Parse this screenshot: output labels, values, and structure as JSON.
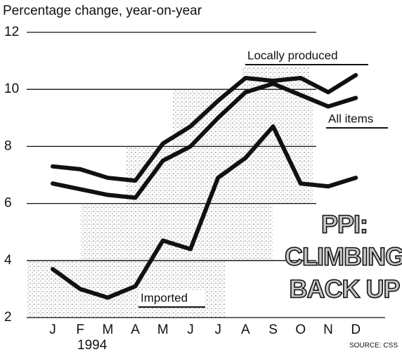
{
  "chart_data": {
    "type": "line",
    "title": "Percentage change, year-on-year",
    "categories": [
      "J",
      "F",
      "M",
      "A",
      "M",
      "J",
      "J",
      "A",
      "S",
      "O",
      "N",
      "D"
    ],
    "year_label": "1994",
    "series": [
      {
        "name": "Locally produced",
        "color": "#111111",
        "values": [
          7.3,
          7.2,
          6.9,
          6.8,
          8.1,
          8.7,
          9.6,
          10.4,
          10.3,
          10.4,
          9.9,
          10.5
        ]
      },
      {
        "name": "All items",
        "color": "#111111",
        "values": [
          6.7,
          6.5,
          6.3,
          6.2,
          7.5,
          8.0,
          9.0,
          9.9,
          10.2,
          9.8,
          9.4,
          9.7
        ]
      },
      {
        "name": "Imported",
        "color": "#111111",
        "values": [
          3.7,
          3.0,
          2.7,
          3.1,
          4.7,
          4.4,
          6.9,
          7.6,
          8.7,
          6.7,
          6.6,
          6.9
        ]
      }
    ],
    "ylim": [
      2,
      12
    ],
    "yticks": [
      2,
      4,
      6,
      8,
      10,
      12
    ],
    "grid": true,
    "annotation": [
      "PPI:",
      "CLIMBING",
      "BACK UP"
    ],
    "source": "SOURCE: CSS"
  }
}
